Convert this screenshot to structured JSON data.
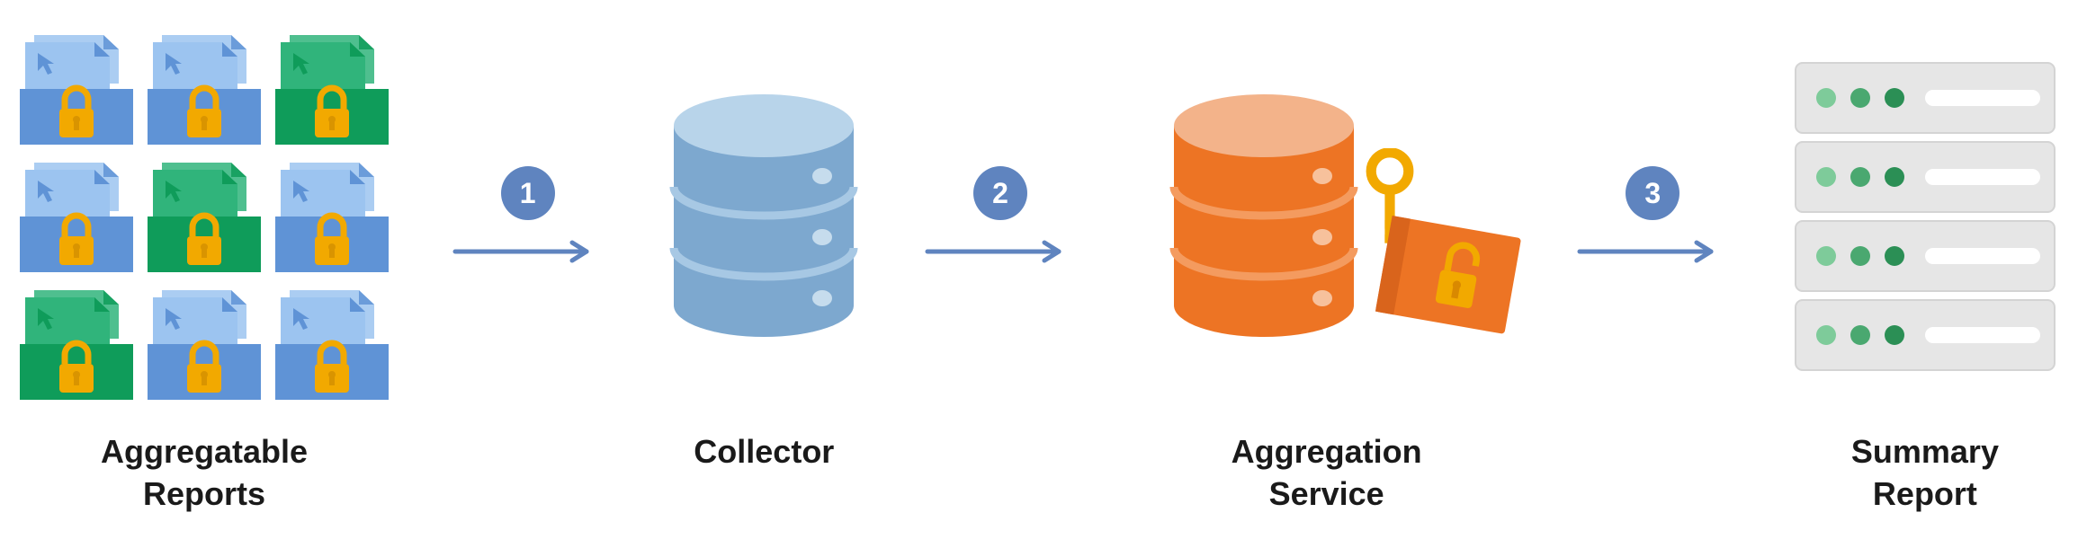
{
  "stage1": {
    "label": "Aggregatable\nReports",
    "grid_colors": [
      [
        "blue",
        "blue",
        "green"
      ],
      [
        "blue",
        "green",
        "blue"
      ],
      [
        "green",
        "blue",
        "blue"
      ]
    ],
    "blue_light": "#9cc4f0",
    "blue_dark": "#5f93d6",
    "green_light": "#30b47b",
    "green_dark": "#0f9c5a",
    "lock_body": "#f2a900",
    "lock_body_dark": "#d99400"
  },
  "step1": {
    "num": "1",
    "badge_color": "#5f84bf",
    "arrow_color": "#5f84bf"
  },
  "stage2": {
    "label": "Collector",
    "top_color": "#b8d4ea",
    "side_color": "#7da8cf",
    "groove_light": "#a7c8e4",
    "dot_color": "#c6dced"
  },
  "step2": {
    "num": "2",
    "badge_color": "#5f84bf",
    "arrow_color": "#5f84bf"
  },
  "stage3": {
    "label": "Aggregation\nService",
    "top_color": "#f3b38a",
    "side_color": "#ed7424",
    "groove_light": "#f49b5f",
    "dot_color": "#f7c19c",
    "key_color": "#f2a900",
    "card_color": "#ed7424",
    "card_lock": "#f2a900"
  },
  "step3": {
    "num": "3",
    "badge_color": "#5f84bf",
    "arrow_color": "#5f84bf"
  },
  "stage4": {
    "label": "Summary\nReport",
    "panel_bg": "#e6e6e6",
    "panel_edge": "#d4d4d4",
    "dot_fills": [
      "#7ecb9a",
      "#4aa870",
      "#2b8f55"
    ],
    "bar_color": "#ffffff"
  },
  "text_color": "#1a1a1a"
}
